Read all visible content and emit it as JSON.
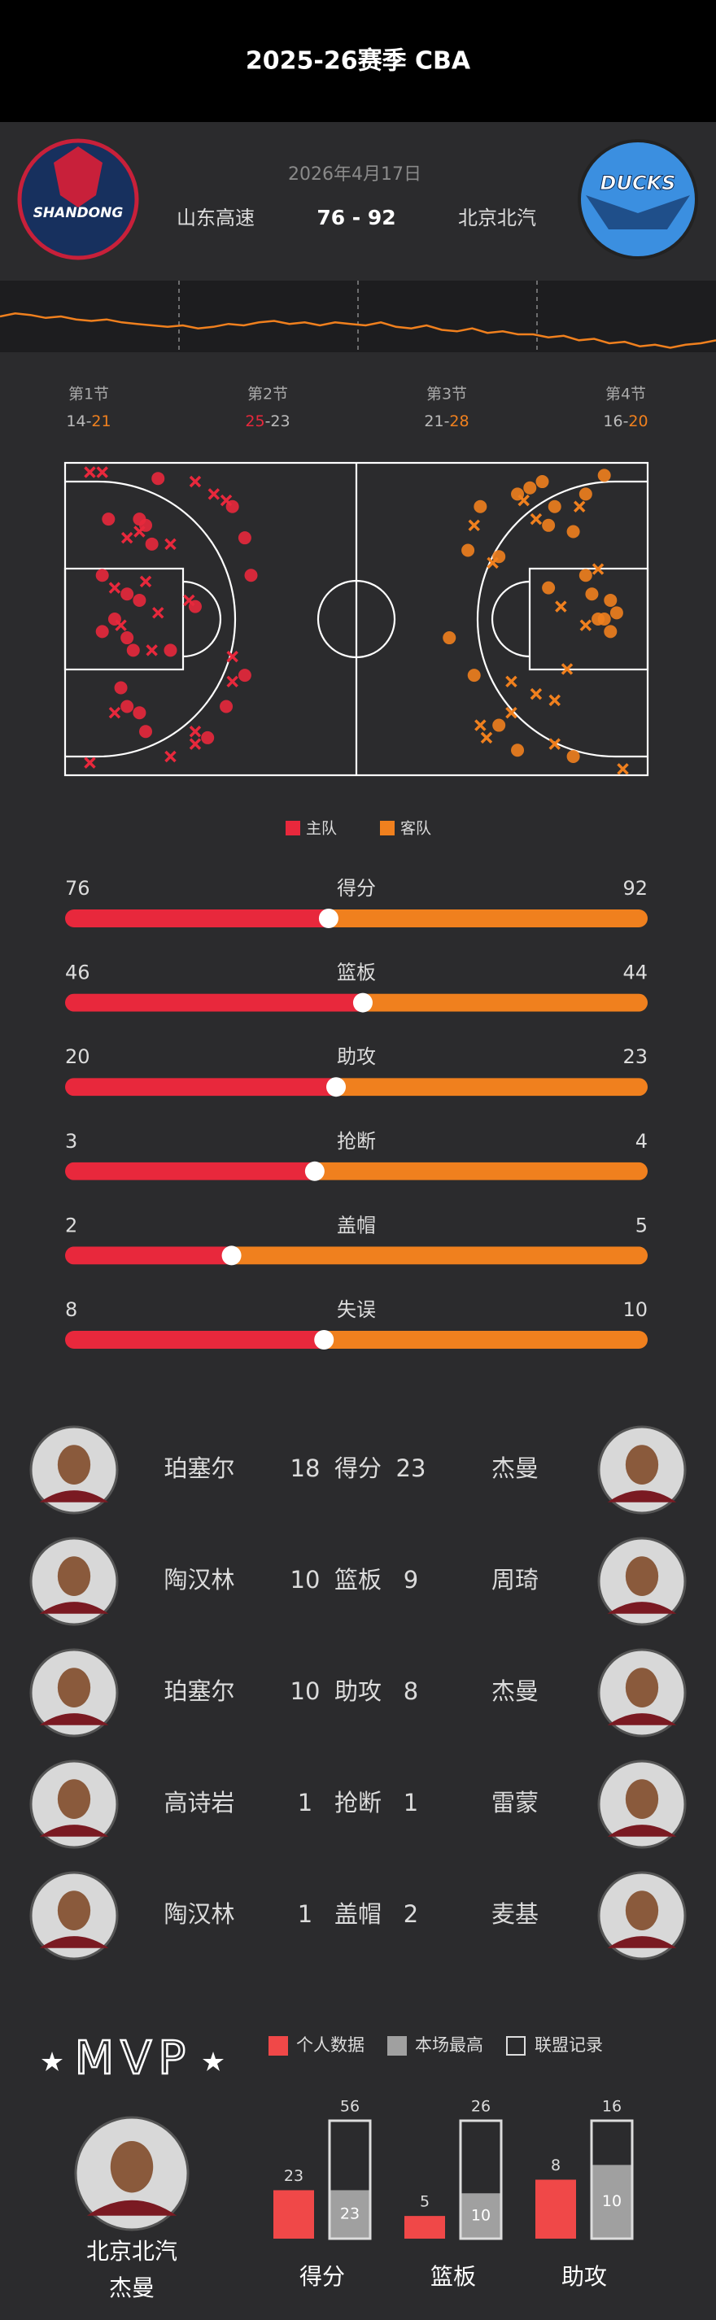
{
  "header": {
    "title": "2025-26赛季 CBA"
  },
  "colors": {
    "home": "#e8283c",
    "away": "#f0801e"
  },
  "game": {
    "date": "2026年4月17日",
    "home": "山东高速",
    "away": "北京北汽",
    "score": "76 - 92",
    "home_logo_text": "SHANDONG",
    "away_logo_text": "DUCKS"
  },
  "momentum": {
    "ylim": [
      -24,
      24
    ],
    "values": [
      0,
      2,
      1,
      -1,
      0,
      -2,
      -3,
      -2,
      -4,
      -5,
      -6,
      -7,
      -6,
      -8,
      -7,
      -5,
      -6,
      -4,
      -3,
      -5,
      -4,
      -6,
      -4,
      -5,
      -6,
      -4,
      -7,
      -8,
      -6,
      -9,
      -10,
      -8,
      -11,
      -10,
      -12,
      -12,
      -14,
      -13,
      -16,
      -15,
      -18,
      -17,
      -20,
      -19,
      -21,
      -19,
      -18,
      -16
    ]
  },
  "quarters": {
    "separator": "-",
    "items": [
      {
        "label": "第1节",
        "home": 14,
        "away": 21
      },
      {
        "label": "第2节",
        "home": 25,
        "away": 23
      },
      {
        "label": "第3节",
        "home": 21,
        "away": 28
      },
      {
        "label": "第4节",
        "home": 16,
        "away": 20
      }
    ]
  },
  "shots": {
    "court": [
      94,
      50
    ],
    "home": [
      [
        4,
        1.5,
        false
      ],
      [
        6,
        1.5,
        false
      ],
      [
        15,
        2.5,
        true
      ],
      [
        21,
        3,
        false
      ],
      [
        24,
        5,
        false
      ],
      [
        26,
        6,
        false
      ],
      [
        27,
        7,
        true
      ],
      [
        7,
        9,
        true
      ],
      [
        12,
        9,
        true
      ],
      [
        12,
        11,
        false
      ],
      [
        13,
        10,
        true
      ],
      [
        10,
        12,
        false
      ],
      [
        14,
        13,
        true
      ],
      [
        17,
        13,
        false
      ],
      [
        29,
        12,
        true
      ],
      [
        30,
        18,
        true
      ],
      [
        6,
        18,
        true
      ],
      [
        8,
        20,
        false
      ],
      [
        10,
        21,
        true
      ],
      [
        12,
        22,
        true
      ],
      [
        13,
        19,
        false
      ],
      [
        15,
        24,
        false
      ],
      [
        20,
        22,
        false
      ],
      [
        21,
        23,
        true
      ],
      [
        8,
        25,
        true
      ],
      [
        9,
        26,
        false
      ],
      [
        6,
        27,
        true
      ],
      [
        10,
        28,
        true
      ],
      [
        14,
        30,
        false
      ],
      [
        17,
        30,
        true
      ],
      [
        11,
        30,
        true
      ],
      [
        27,
        31,
        false
      ],
      [
        29,
        34,
        true
      ],
      [
        27,
        35,
        false
      ],
      [
        9,
        36,
        true
      ],
      [
        10,
        39,
        true
      ],
      [
        12,
        40,
        true
      ],
      [
        26,
        39,
        true
      ],
      [
        8,
        40,
        false
      ],
      [
        21,
        43,
        false
      ],
      [
        21,
        45,
        false
      ],
      [
        23,
        44,
        true
      ],
      [
        17,
        47,
        false
      ],
      [
        4,
        48,
        false
      ],
      [
        13,
        43,
        true
      ]
    ],
    "away": [
      [
        87,
        2,
        true
      ],
      [
        84,
        5,
        true
      ],
      [
        77,
        3,
        true
      ],
      [
        75,
        4,
        true
      ],
      [
        73,
        5,
        true
      ],
      [
        74,
        6,
        false
      ],
      [
        79,
        7,
        true
      ],
      [
        76,
        9,
        false
      ],
      [
        78,
        10,
        true
      ],
      [
        67,
        7,
        true
      ],
      [
        66,
        10,
        false
      ],
      [
        65,
        14,
        true
      ],
      [
        69,
        16,
        false
      ],
      [
        70,
        15,
        true
      ],
      [
        83,
        7,
        false
      ],
      [
        82,
        11,
        true
      ],
      [
        86,
        17,
        false
      ],
      [
        84,
        18,
        true
      ],
      [
        85,
        21,
        true
      ],
      [
        88,
        22,
        true
      ],
      [
        87,
        25,
        true
      ],
      [
        88,
        27,
        true
      ],
      [
        86,
        25,
        true
      ],
      [
        89,
        24,
        true
      ],
      [
        78,
        20,
        true
      ],
      [
        80,
        23,
        false
      ],
      [
        84,
        26,
        false
      ],
      [
        62,
        28,
        true
      ],
      [
        66,
        34,
        true
      ],
      [
        72,
        35,
        false
      ],
      [
        76,
        37,
        false
      ],
      [
        72,
        40,
        false
      ],
      [
        70,
        42,
        true
      ],
      [
        67,
        42,
        false
      ],
      [
        68,
        44,
        false
      ],
      [
        73,
        46,
        true
      ],
      [
        79,
        45,
        false
      ],
      [
        82,
        47,
        true
      ],
      [
        90,
        49,
        false
      ],
      [
        81,
        33,
        false
      ],
      [
        79,
        38,
        false
      ]
    ]
  },
  "legend": {
    "home": "主队",
    "away": "客队"
  },
  "team_stats": [
    {
      "label": "得分",
      "home": 76,
      "away": 92
    },
    {
      "label": "篮板",
      "home": 46,
      "away": 44
    },
    {
      "label": "助攻",
      "home": 20,
      "away": 23
    },
    {
      "label": "抢断",
      "home": 3,
      "away": 4
    },
    {
      "label": "盖帽",
      "home": 2,
      "away": 5
    },
    {
      "label": "失误",
      "home": 8,
      "away": 10
    }
  ],
  "leaders": [
    {
      "home_player": "珀塞尔",
      "home_value": 18,
      "label": "得分",
      "away_value": 23,
      "away_player": "杰曼"
    },
    {
      "home_player": "陶汉林",
      "home_value": 10,
      "label": "篮板",
      "away_value": 9,
      "away_player": "周琦"
    },
    {
      "home_player": "珀塞尔",
      "home_value": 10,
      "label": "助攻",
      "away_value": 8,
      "away_player": "杰曼"
    },
    {
      "home_player": "高诗岩",
      "home_value": 1,
      "label": "抢断",
      "away_value": 1,
      "away_player": "雷蒙"
    },
    {
      "home_player": "陶汉林",
      "home_value": 1,
      "label": "盖帽",
      "away_value": 2,
      "away_player": "麦基"
    }
  ],
  "mvp": {
    "title": "MVP",
    "team": "北京北汽",
    "name": "杰曼",
    "legend": {
      "personal": "个人数据",
      "game_high": "本场最高",
      "league_record": "联盟记录"
    },
    "stats": [
      {
        "label": "得分",
        "personal": 23,
        "game_high": 23,
        "league_record": 56
      },
      {
        "label": "篮板",
        "personal": 5,
        "game_high": 10,
        "league_record": 26
      },
      {
        "label": "助攻",
        "personal": 8,
        "game_high": 10,
        "league_record": 16
      }
    ]
  }
}
